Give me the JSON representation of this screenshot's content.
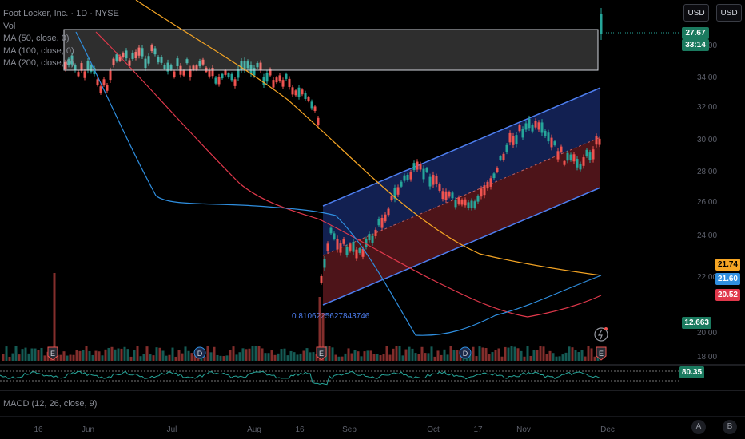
{
  "chart_data": {
    "type": "candlestick",
    "symbol_title": "Foot Locker, Inc. · 1D · NYSE",
    "legend": [
      "Vol",
      "MA (50, close, 0)",
      "MA (100, close, 0)",
      "MA (200, close, 0)"
    ],
    "x_ticks": [
      "16",
      "Jun",
      "Jul",
      "Aug",
      "16",
      "Sep",
      "Oct",
      "17",
      "Nov",
      "Dec"
    ],
    "y_ticks": [
      "36.00",
      "34.00",
      "32.00",
      "30.00",
      "28.00",
      "26.00",
      "24.00",
      "22.00",
      "20.00",
      "18.00"
    ],
    "price_tags": {
      "last_price": "27.67",
      "countdown": "33:14",
      "ma_200": "21.74",
      "ma_100": "21.60",
      "ma_50": "20.52",
      "low_marker": "12.663"
    },
    "channel_label": "0.8106225627843746",
    "event_markers": [
      "E",
      "D",
      "E",
      "D",
      "E"
    ],
    "oscillator_value": "80.35",
    "macd_legend": "MACD (12, 26, close, 9)",
    "colors": {
      "up": "#26a69a",
      "down": "#ef5350",
      "ma50": "#e0384b",
      "ma100": "#2f8fe0",
      "ma200": "#f5a524"
    }
  },
  "toolbar": {
    "currency_1": "USD",
    "currency_2": "USD"
  },
  "bottom_buttons": [
    "A",
    "B"
  ]
}
